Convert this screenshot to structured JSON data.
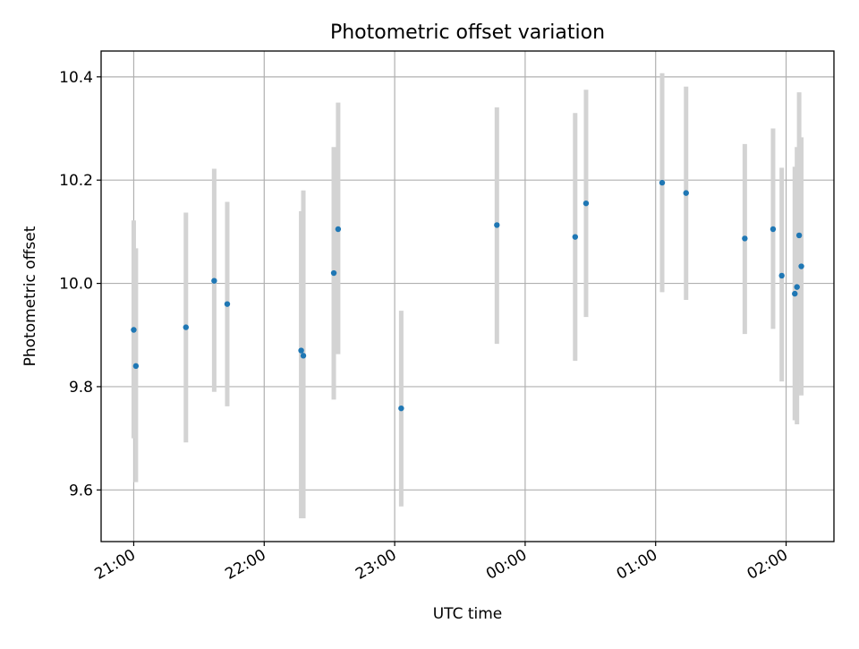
{
  "chart_data": {
    "type": "scatter",
    "title": "Photometric offset variation",
    "xlabel": "UTC time",
    "ylabel": "Photometric offset",
    "x_axis_type": "time",
    "x_axis_start_date": "2000-01-01",
    "xlim": [
      "20:45",
      "02:22"
    ],
    "ylim": [
      9.5,
      10.45
    ],
    "x_ticks": [
      "21:00",
      "22:00",
      "23:00",
      "00:00",
      "01:00",
      "02:00"
    ],
    "y_ticks": [
      9.6,
      9.8,
      10.0,
      10.2,
      10.4
    ],
    "y_tick_labels": [
      "9.6",
      "9.8",
      "10.0",
      "10.2",
      "10.4"
    ],
    "grid": true,
    "colors": {
      "points": "#1f77b4",
      "errorbars": "#d3d3d3",
      "grid": "#b0b0b0"
    },
    "series": [
      {
        "x": [
          "21:00",
          "21:01",
          "21:24",
          "21:37",
          "21:43",
          "22:17",
          "22:18",
          "22:32",
          "22:34",
          "23:03",
          "23:47",
          "00:23",
          "00:28",
          "01:03",
          "01:14",
          "01:41",
          "01:54",
          "01:58",
          "02:04",
          "02:05",
          "02:06",
          "02:07"
        ],
        "y": [
          9.91,
          9.84,
          9.915,
          10.005,
          9.96,
          9.87,
          9.86,
          10.02,
          10.105,
          9.758,
          10.113,
          10.09,
          10.155,
          10.195,
          10.175,
          10.087,
          10.105,
          10.015,
          9.98,
          9.993,
          10.093,
          10.033
        ],
        "err_low": [
          9.7,
          9.615,
          9.692,
          9.79,
          9.762,
          9.545,
          9.545,
          9.775,
          9.863,
          9.568,
          9.883,
          9.85,
          9.935,
          9.983,
          9.968,
          9.902,
          9.912,
          9.81,
          9.735,
          9.727,
          9.82,
          9.783
        ],
        "err_high": [
          10.122,
          10.068,
          10.137,
          10.222,
          10.158,
          10.14,
          10.18,
          10.264,
          10.35,
          9.947,
          10.341,
          10.33,
          10.375,
          10.407,
          10.381,
          10.27,
          10.3,
          10.224,
          10.226,
          10.264,
          10.37,
          10.283
        ]
      }
    ]
  }
}
